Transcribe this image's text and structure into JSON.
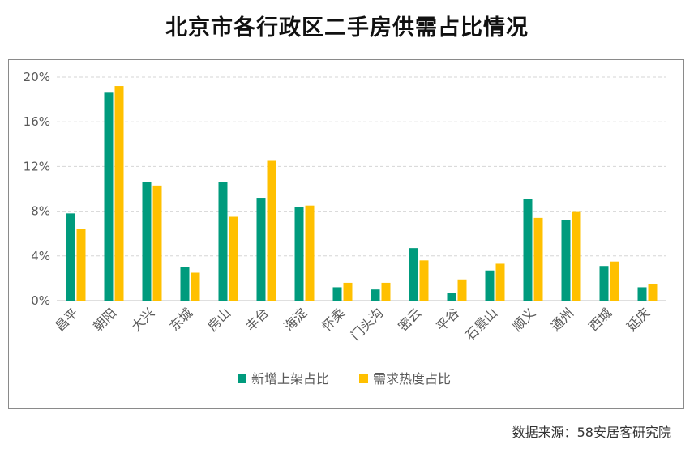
{
  "title": "北京市各行政区二手房供需占比情况",
  "source": "数据来源：58安居客研究院",
  "colors": {
    "series1": "#009B7D",
    "series2": "#FFC000",
    "grid": "#d6d6d6",
    "axis": "#bfbfbf",
    "tick": "#595959"
  },
  "chart_data": {
    "type": "bar",
    "categories": [
      "昌平",
      "朝阳",
      "大兴",
      "东城",
      "房山",
      "丰台",
      "海淀",
      "怀柔",
      "门头沟",
      "密云",
      "平谷",
      "石景山",
      "顺义",
      "通州",
      "西城",
      "延庆"
    ],
    "series": [
      {
        "name": "新增上架占比",
        "values": [
          7.8,
          18.6,
          10.6,
          3.0,
          10.6,
          9.2,
          8.4,
          1.2,
          1.0,
          4.7,
          0.7,
          2.7,
          9.1,
          7.2,
          3.1,
          1.2
        ]
      },
      {
        "name": "需求热度占比",
        "values": [
          6.4,
          19.2,
          10.3,
          2.5,
          7.5,
          12.5,
          8.5,
          1.6,
          1.6,
          3.6,
          1.9,
          3.3,
          7.4,
          8.0,
          3.5,
          1.5
        ]
      }
    ],
    "yticks": [
      "0%",
      "4%",
      "8%",
      "12%",
      "16%",
      "20%"
    ],
    "ylim": [
      0,
      20
    ],
    "ylabel": "",
    "xlabel": "",
    "grid": true,
    "legend_position": "bottom"
  }
}
